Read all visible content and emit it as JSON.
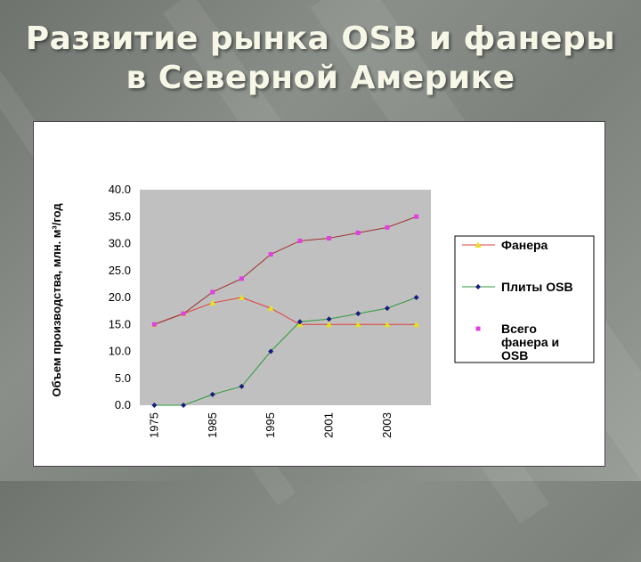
{
  "slide": {
    "title_line1": "Развитие рынка OSB и фанеры",
    "title_line2": "в Северной Америке"
  },
  "chart_data": {
    "type": "line",
    "ylabel": "Объем производства, млн. м³/год",
    "ylim": [
      0,
      40
    ],
    "yticks": [
      "0.0",
      "5.0",
      "10.0",
      "15.0",
      "20.0",
      "25.0",
      "30.0",
      "35.0",
      "40.0"
    ],
    "ytick_values": [
      0,
      5,
      10,
      15,
      20,
      25,
      30,
      35,
      40
    ],
    "x_tick_labels": [
      "1975",
      "1985",
      "1995",
      "2001",
      "2003"
    ],
    "x_tick_indices": [
      0,
      2,
      4,
      6,
      8
    ],
    "grid": false,
    "plot_background": "#c0c0c0",
    "legend_position": "right",
    "series": [
      {
        "name": "Фанера",
        "values": [
          15.0,
          17.0,
          19.0,
          20.0,
          18.0,
          15.0,
          15.0,
          15.0,
          15.0,
          15.0
        ],
        "line_color": "#e03c3c",
        "marker_color": "#e8e020",
        "marker": "triangle"
      },
      {
        "name": "Плиты OSB",
        "values": [
          0.0,
          0.0,
          2.0,
          3.5,
          10.0,
          15.5,
          16.0,
          17.0,
          18.0,
          20.0
        ],
        "line_color": "#2f9a3a",
        "marker_color": "#1a1a80",
        "marker": "diamond"
      },
      {
        "name": "Всего фанера и OSB",
        "legend_lines": [
          "Всего",
          "фанера и",
          "OSB"
        ],
        "values": [
          15.0,
          17.0,
          21.0,
          23.5,
          28.0,
          30.5,
          31.0,
          32.0,
          33.0,
          35.0
        ],
        "line_color": "#a03030",
        "marker_color": "#e040e0",
        "marker": "square"
      }
    ]
  }
}
